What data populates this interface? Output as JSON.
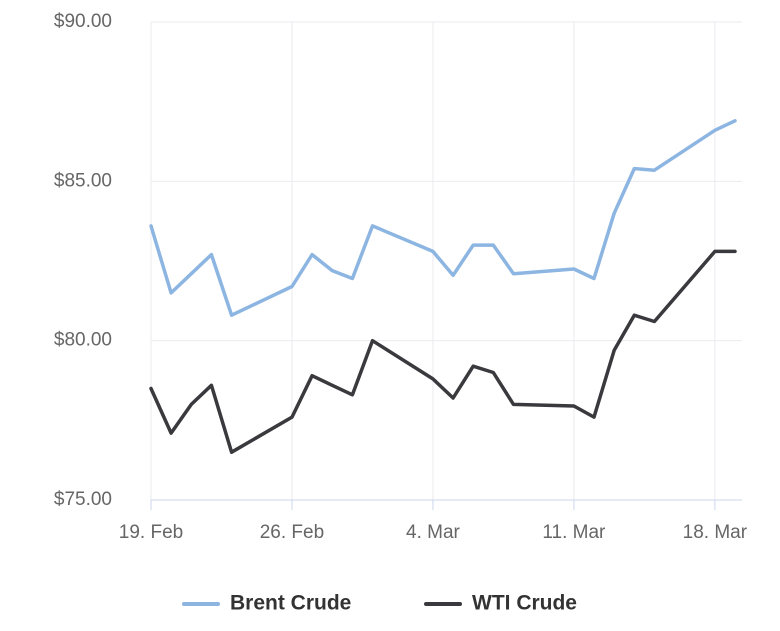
{
  "chart_data": {
    "type": "line",
    "x": [
      "19. Feb",
      "20. Feb",
      "21. Feb",
      "22. Feb",
      "23. Feb",
      "26. Feb",
      "27. Feb",
      "28. Feb",
      "29. Feb",
      "1. Mar",
      "4. Mar",
      "5. Mar",
      "6. Mar",
      "7. Mar",
      "8. Mar",
      "11. Mar",
      "12. Mar",
      "13. Mar",
      "14. Mar",
      "15. Mar",
      "18. Mar",
      "19. Mar"
    ],
    "series": [
      {
        "name": "Brent Crude",
        "color": "#8cb5e2",
        "values": [
          83.6,
          81.5,
          82.1,
          82.7,
          80.8,
          81.7,
          82.7,
          82.2,
          81.95,
          83.6,
          82.8,
          82.05,
          83.0,
          83.0,
          82.1,
          82.25,
          81.95,
          84.0,
          85.4,
          85.35,
          86.6,
          86.9
        ]
      },
      {
        "name": "WTI Crude",
        "color": "#3a3a3e",
        "values": [
          78.5,
          77.1,
          78.0,
          78.6,
          76.5,
          77.6,
          78.9,
          78.6,
          78.3,
          80.0,
          78.8,
          78.2,
          79.2,
          79.0,
          78.0,
          77.95,
          77.6,
          79.7,
          80.8,
          80.6,
          82.8,
          82.8
        ]
      }
    ],
    "xlim": [
      "19. Feb",
      "19. Mar"
    ],
    "xticks": [
      "19. Feb",
      "26. Feb",
      "4. Mar",
      "11. Mar",
      "18. Mar"
    ],
    "ylim": [
      75,
      90
    ],
    "yticks": [
      {
        "value": 75,
        "label": "$75.00"
      },
      {
        "value": 80,
        "label": "$80.00"
      },
      {
        "value": 85,
        "label": "$85.00"
      },
      {
        "value": 90,
        "label": "$90.00"
      }
    ],
    "grid": true
  }
}
